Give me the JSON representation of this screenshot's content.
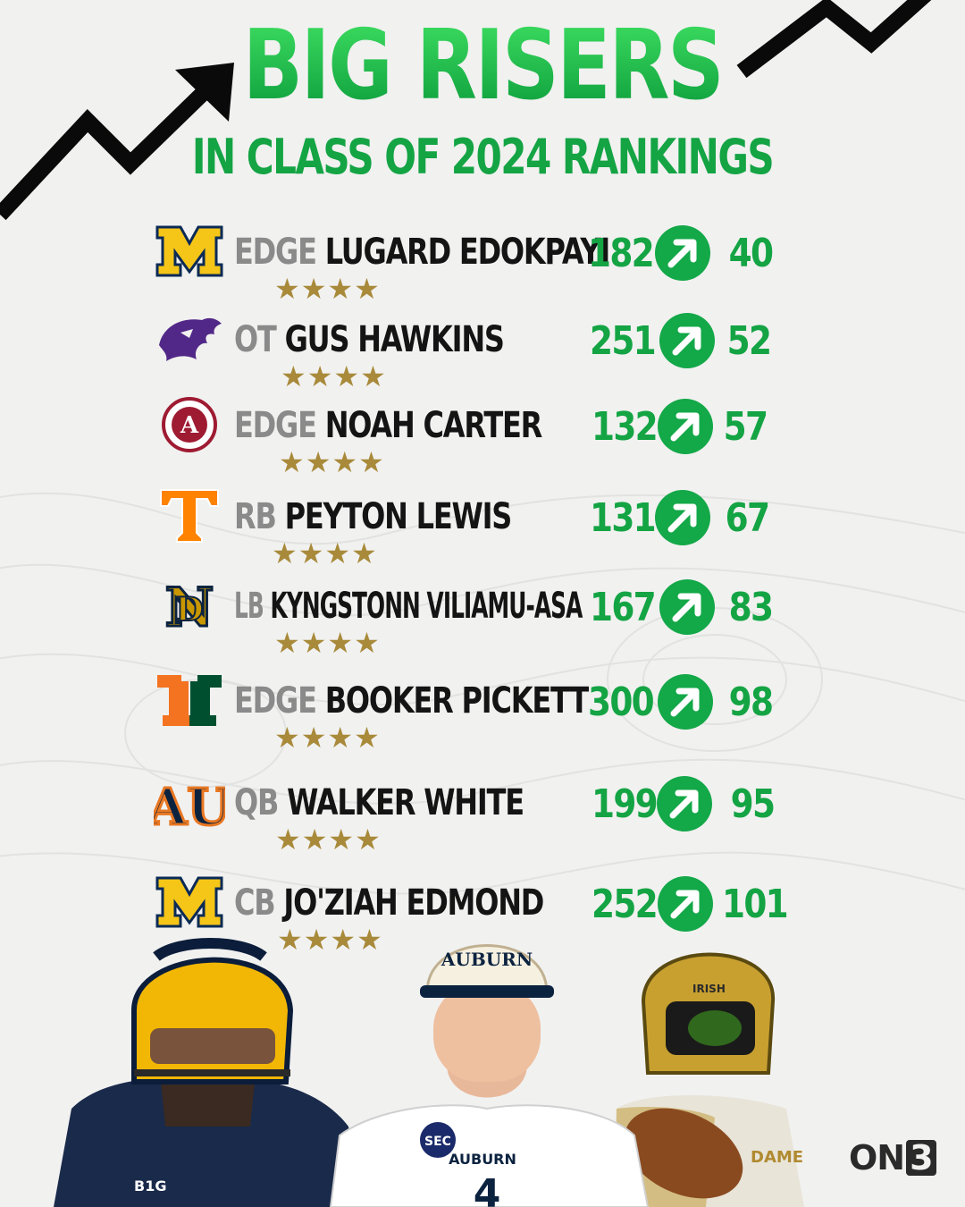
{
  "header": {
    "title": "BIG RISERS",
    "subtitle": "IN CLASS OF 2024 RANKINGS"
  },
  "colors": {
    "accent_green": "#14a444",
    "star_gold": "#a88a3a",
    "position_gray": "#8a8a8a",
    "background": "#f1f1f0"
  },
  "players": [
    {
      "logo": "michigan-logo",
      "position": "EDGE",
      "name": "LUGARD EDOKPAYI",
      "stars": "★★★★",
      "star_count": 4,
      "old_rank": "182",
      "new_rank": "40"
    },
    {
      "logo": "kansas-state-logo",
      "position": "OT",
      "name": "GUS HAWKINS",
      "stars": "★★★★",
      "star_count": 4,
      "old_rank": "251",
      "new_rank": "52"
    },
    {
      "logo": "alabama-logo",
      "position": "EDGE",
      "name": "NOAH CARTER",
      "stars": "★★★★",
      "star_count": 4,
      "old_rank": "132",
      "new_rank": "57"
    },
    {
      "logo": "tennessee-logo",
      "position": "RB",
      "name": "PEYTON LEWIS",
      "stars": "★★★★",
      "star_count": 4,
      "old_rank": "131",
      "new_rank": "67"
    },
    {
      "logo": "notre-dame-logo",
      "position": "LB",
      "name": "KYNGSTONN VILIAMU-ASA",
      "stars": "★★★★",
      "star_count": 4,
      "old_rank": "167",
      "new_rank": "83"
    },
    {
      "logo": "miami-logo",
      "position": "EDGE",
      "name": "BOOKER PICKETT",
      "stars": "★★★★",
      "star_count": 4,
      "old_rank": "300",
      "new_rank": "98"
    },
    {
      "logo": "auburn-logo",
      "position": "QB",
      "name": "WALKER WHITE",
      "stars": "★★★★",
      "star_count": 4,
      "old_rank": "199",
      "new_rank": "95"
    },
    {
      "logo": "michigan-logo",
      "position": "CB",
      "name": "JO'ZIAH EDMOND",
      "stars": "★★★★",
      "star_count": 4,
      "old_rank": "252",
      "new_rank": "101"
    }
  ],
  "photo": {
    "hat_text": "AUBURN",
    "jersey_text": "AUBURN",
    "helmet_text": "IRISH",
    "conference_badge": "SEC",
    "patch_text": "B1G",
    "jersey_number": "4",
    "jersey_fragment": "DAME"
  },
  "brand": {
    "on": "ON",
    "three": "3"
  }
}
